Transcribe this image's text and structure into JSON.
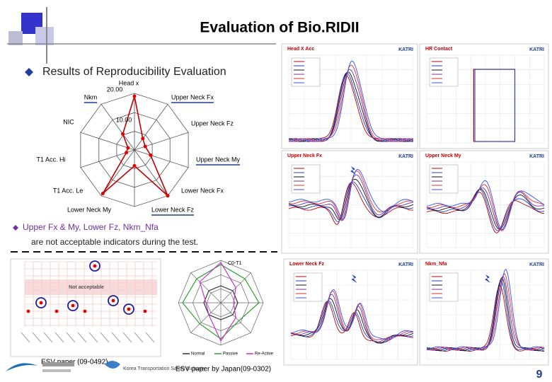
{
  "header": {
    "title": "Evaluation of Bio.RIDII"
  },
  "bullet": "Results of Reproducibility Evaluation",
  "radar": {
    "labels": [
      "Head x",
      "Nkm",
      "Upper Neck Fx",
      "NIC",
      "Upper Neck Fz",
      "T1 Acc. Hi",
      "Upper Neck My",
      "T1 Acc. Le",
      "Lower Neck Fx",
      "Lower Neck My",
      "Lower Neck Fz"
    ],
    "scale": [
      "20.00",
      "10.00"
    ]
  },
  "note": {
    "line1": "Upper Fx & My, Lower Fz, Nkm_Nfa",
    "line2": "are not acceptable indicators during the test."
  },
  "panels": [
    {
      "title": "Head X Acc",
      "logo": "KATRI"
    },
    {
      "title": "HR Contact",
      "logo": "KATRI"
    },
    {
      "title": "Upper Neck Fx",
      "logo": "KATRI"
    },
    {
      "title": "Upper Neck My",
      "logo": "KATRI"
    },
    {
      "title": "Lower Neck Fz",
      "logo": "KATRI"
    },
    {
      "title": "Nkm_Nfa",
      "logo": "KATRI"
    }
  ],
  "small_chart": {
    "band_label": "Not acceptable"
  },
  "small_radar": {
    "center_label": "C0-T1",
    "legend": [
      "Normal",
      "Passive",
      "Re-Active"
    ]
  },
  "captions": [
    "ESV paper (09-0492)",
    "ESV paper by Japan(09-0302)"
  ],
  "footer": {
    "org": "Korea Transportation Safety Authority",
    "page_number": "9"
  }
}
